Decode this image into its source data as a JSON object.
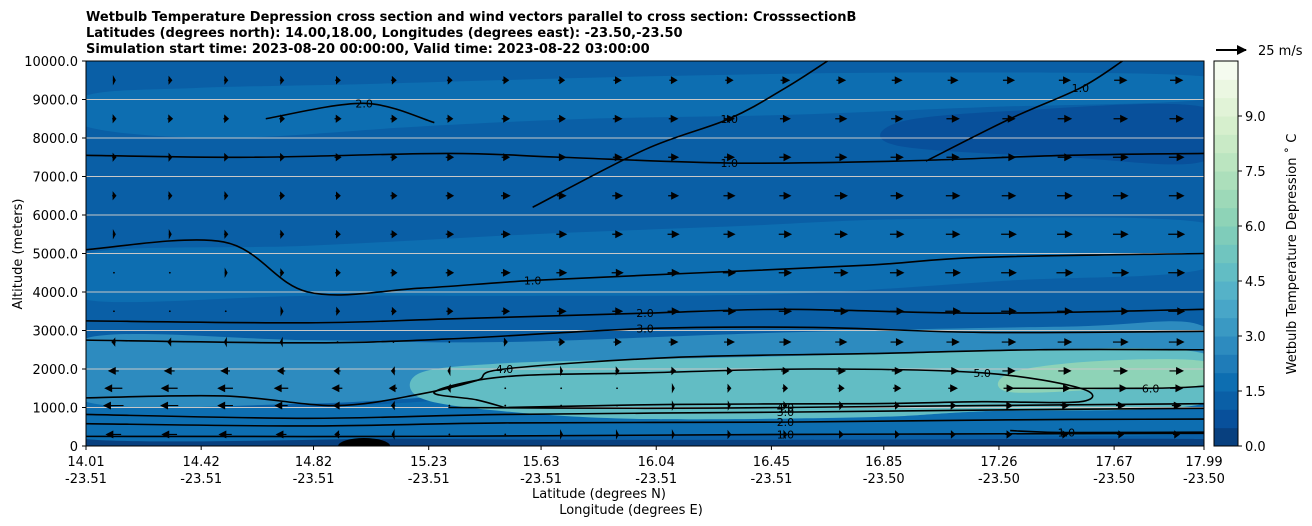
{
  "chart_data": {
    "type": "heatmap",
    "subtype": "filled-contour cross section with wind vectors",
    "title_lines": [
      "Wetbulb Temperature Depression cross section and wind vectors parallel to cross section: CrosssectionB",
      "Latitudes (degrees north): 14.00,18.00, Longitudes (degrees east): -23.50,-23.50",
      "Simulation start time: 2023-08-20 00:00:00, Valid time: 2023-08-22 03:00:00"
    ],
    "xlabel_line1": "Latitude (degrees N)",
    "xlabel_line2": "Longitude (degrees E)",
    "ylabel": "Altitude (meters)",
    "xlim": [
      14.01,
      17.99
    ],
    "ylim": [
      0,
      10000
    ],
    "x_ticks": [
      {
        "lat": "14.01",
        "lon": "-23.51",
        "value": 14.01
      },
      {
        "lat": "14.42",
        "lon": "-23.51",
        "value": 14.42
      },
      {
        "lat": "14.82",
        "lon": "-23.51",
        "value": 14.82
      },
      {
        "lat": "15.23",
        "lon": "-23.51",
        "value": 15.23
      },
      {
        "lat": "15.63",
        "lon": "-23.51",
        "value": 15.63
      },
      {
        "lat": "16.04",
        "lon": "-23.51",
        "value": 16.04
      },
      {
        "lat": "16.45",
        "lon": "-23.51",
        "value": 16.45
      },
      {
        "lat": "16.85",
        "lon": "-23.50",
        "value": 16.85
      },
      {
        "lat": "17.26",
        "lon": "-23.50",
        "value": 17.26
      },
      {
        "lat": "17.67",
        "lon": "-23.50",
        "value": 17.67
      },
      {
        "lat": "17.99",
        "lon": "-23.50",
        "value": 17.99
      }
    ],
    "y_ticks": [
      {
        "label": "0",
        "value": 0
      },
      {
        "label": "1000.0",
        "value": 1000
      },
      {
        "label": "2000.0",
        "value": 2000
      },
      {
        "label": "3000.0",
        "value": 3000
      },
      {
        "label": "4000.0",
        "value": 4000
      },
      {
        "label": "5000.0",
        "value": 5000
      },
      {
        "label": "6000.0",
        "value": 6000
      },
      {
        "label": "7000.0",
        "value": 7000
      },
      {
        "label": "8000.0",
        "value": 8000
      },
      {
        "label": "9000.0",
        "value": 9000
      },
      {
        "label": "10000.0",
        "value": 10000
      }
    ],
    "grid": "horizontal",
    "colorbar": {
      "label": "Wetbulb Temperature Depression ˚ C",
      "min": 0,
      "max": 10.5,
      "step": 0.5,
      "ticks": [
        {
          "label": "0.0",
          "value": 0
        },
        {
          "label": "1.5",
          "value": 1.5
        },
        {
          "label": "3.0",
          "value": 3
        },
        {
          "label": "4.5",
          "value": 4.5
        },
        {
          "label": "6.0",
          "value": 6
        },
        {
          "label": "7.5",
          "value": 7.5
        },
        {
          "label": "9.0",
          "value": 9
        }
      ],
      "colors": [
        "#08407f",
        "#08509b",
        "#0a5fa6",
        "#0d6eb1",
        "#1f7cb8",
        "#2d8bbf",
        "#3a99c3",
        "#48a6c8",
        "#55b2c8",
        "#62bdc4",
        "#70c5bf",
        "#7fccba",
        "#8ed3b7",
        "#9dd9b8",
        "#acdfbb",
        "#bbe5c0",
        "#c9eac6",
        "#d6efcd",
        "#e1f3d7",
        "#ebf7e2",
        "#f5fbef"
      ]
    },
    "wind_reference": {
      "label": "25 m/s",
      "speed": 25
    },
    "filled_bands": [
      {
        "name": "surface-low",
        "value": 0.4,
        "points": [
          [
            14.01,
            0
          ],
          [
            17.99,
            0
          ],
          [
            17.99,
            180
          ],
          [
            16.5,
            160
          ],
          [
            15.5,
            170
          ],
          [
            14.5,
            230
          ],
          [
            14.01,
            220
          ]
        ]
      },
      {
        "name": "boundary-layer",
        "value": 1.7,
        "points": [
          [
            14.01,
            180
          ],
          [
            15.4,
            230
          ],
          [
            16.5,
            320
          ],
          [
            17.99,
            330
          ],
          [
            17.99,
            1200
          ],
          [
            17.5,
            1300
          ],
          [
            16.5,
            1350
          ],
          [
            15.5,
            1250
          ],
          [
            14.8,
            1000
          ],
          [
            14.3,
            1100
          ],
          [
            14.01,
            1150
          ]
        ]
      },
      {
        "name": "moist-mid",
        "value": 2.9,
        "points": [
          [
            14.01,
            1150
          ],
          [
            14.8,
            1100
          ],
          [
            15.5,
            1350
          ],
          [
            16.5,
            1400
          ],
          [
            17.99,
            1300
          ],
          [
            17.99,
            3100
          ],
          [
            17.5,
            3100
          ],
          [
            16.5,
            2950
          ],
          [
            15.5,
            2700
          ],
          [
            14.8,
            2750
          ],
          [
            14.01,
            2800
          ]
        ]
      },
      {
        "name": "dry-layer",
        "value": 4.6,
        "points": [
          [
            15.2,
            1250
          ],
          [
            15.5,
            900
          ],
          [
            16.0,
            700
          ],
          [
            16.8,
            750
          ],
          [
            17.2,
            900
          ],
          [
            17.99,
            1100
          ],
          [
            17.99,
            2400
          ],
          [
            17.3,
            2500
          ],
          [
            16.6,
            2350
          ],
          [
            16.0,
            2250
          ],
          [
            15.5,
            2150
          ],
          [
            15.2,
            1900
          ]
        ]
      },
      {
        "name": "dry-core",
        "value": 6.2,
        "points": [
          [
            17.3,
            1400
          ],
          [
            17.7,
            1500
          ],
          [
            17.99,
            1600
          ],
          [
            17.99,
            2200
          ],
          [
            17.6,
            2200
          ],
          [
            17.3,
            1900
          ]
        ]
      },
      {
        "name": "mid-trop",
        "value": 1.5,
        "points": [
          [
            14.01,
            3800
          ],
          [
            14.8,
            3900
          ],
          [
            15.6,
            3900
          ],
          [
            16.5,
            3950
          ],
          [
            17.3,
            4300
          ],
          [
            17.99,
            4600
          ],
          [
            17.99,
            5800
          ],
          [
            17.0,
            5900
          ],
          [
            16.3,
            5700
          ],
          [
            15.6,
            5500
          ],
          [
            14.8,
            5200
          ],
          [
            14.01,
            5000
          ]
        ]
      },
      {
        "name": "upper-band",
        "value": 1.6,
        "points": [
          [
            14.01,
            8300
          ],
          [
            14.5,
            8000
          ],
          [
            15.2,
            8300
          ],
          [
            15.8,
            8500
          ],
          [
            16.5,
            8600
          ],
          [
            17.2,
            8800
          ],
          [
            17.99,
            9000
          ],
          [
            17.99,
            9600
          ],
          [
            17.0,
            9700
          ],
          [
            16.0,
            9600
          ],
          [
            15.0,
            9400
          ],
          [
            14.4,
            9300
          ],
          [
            14.01,
            9100
          ]
        ]
      },
      {
        "name": "dark-upper",
        "value": 0.6,
        "points": [
          [
            16.9,
            7800
          ],
          [
            17.5,
            7500
          ],
          [
            17.99,
            7400
          ],
          [
            17.99,
            8800
          ],
          [
            17.3,
            8700
          ],
          [
            16.9,
            8400
          ]
        ]
      }
    ],
    "contours": [
      {
        "level": "1.0",
        "points": [
          [
            14.01,
            250
          ],
          [
            15.2,
            250
          ],
          [
            16.5,
            300
          ],
          [
            17.99,
            330
          ]
        ]
      },
      {
        "level": "1.0",
        "points": [
          [
            14.01,
            7550
          ],
          [
            14.6,
            7500
          ],
          [
            15.3,
            7600
          ],
          [
            15.7,
            7500
          ],
          [
            16.3,
            7350
          ],
          [
            16.9,
            7400
          ],
          [
            17.5,
            7550
          ],
          [
            17.99,
            7600
          ]
        ]
      },
      {
        "level": "1.0",
        "points": [
          [
            14.01,
            5100
          ],
          [
            14.5,
            5300
          ],
          [
            14.8,
            4000
          ],
          [
            15.2,
            4100
          ],
          [
            15.6,
            4300
          ],
          [
            16.2,
            4500
          ],
          [
            16.8,
            4700
          ],
          [
            17.2,
            4900
          ],
          [
            17.99,
            5000
          ]
        ]
      },
      {
        "level": "1.0",
        "points": [
          [
            15.6,
            6200
          ],
          [
            16.0,
            7700
          ],
          [
            16.3,
            8500
          ],
          [
            16.5,
            9300
          ],
          [
            16.65,
            10000
          ]
        ]
      },
      {
        "level": "1.0",
        "points": [
          [
            17.0,
            7400
          ],
          [
            17.3,
            8500
          ],
          [
            17.55,
            9300
          ],
          [
            17.7,
            10000
          ]
        ]
      },
      {
        "level": "1.0",
        "points": [
          [
            17.3,
            400
          ],
          [
            17.5,
            350
          ],
          [
            17.99,
            360
          ]
        ]
      },
      {
        "level": "2.0",
        "points": [
          [
            14.01,
            580
          ],
          [
            14.8,
            520
          ],
          [
            15.5,
            600
          ],
          [
            16.5,
            620
          ],
          [
            17.3,
            680
          ],
          [
            17.99,
            700
          ]
        ]
      },
      {
        "level": "2.0",
        "points": [
          [
            14.01,
            3250
          ],
          [
            14.8,
            3200
          ],
          [
            15.3,
            3300
          ],
          [
            16.0,
            3450
          ],
          [
            16.5,
            3550
          ],
          [
            17.2,
            3450
          ],
          [
            17.99,
            3550
          ]
        ]
      },
      {
        "level": "3.0",
        "points": [
          [
            14.01,
            820
          ],
          [
            14.8,
            720
          ],
          [
            15.5,
            820
          ],
          [
            16.5,
            880
          ],
          [
            17.3,
            940
          ],
          [
            17.99,
            980
          ]
        ]
      },
      {
        "level": "3.0",
        "points": [
          [
            14.01,
            2750
          ],
          [
            14.8,
            2680
          ],
          [
            15.3,
            2780
          ],
          [
            16.0,
            3050
          ],
          [
            16.6,
            3080
          ],
          [
            17.2,
            2950
          ],
          [
            17.99,
            2980
          ]
        ]
      },
      {
        "level": "4.0",
        "points": [
          [
            14.01,
            1250
          ],
          [
            14.5,
            1300
          ],
          [
            14.9,
            1050
          ],
          [
            15.2,
            1350
          ],
          [
            15.4,
            1700
          ],
          [
            15.5,
            2000
          ],
          [
            16.1,
            2300
          ],
          [
            16.8,
            2400
          ],
          [
            17.4,
            2500
          ],
          [
            17.99,
            2500
          ]
        ]
      },
      {
        "level": "4.0",
        "points": [
          [
            15.3,
            1000
          ],
          [
            16.0,
            980
          ],
          [
            16.5,
            1000
          ],
          [
            17.2,
            1050
          ],
          [
            17.99,
            1100
          ]
        ]
      },
      {
        "level": "5.0",
        "points": [
          [
            15.5,
            1000
          ],
          [
            16.1,
            1080
          ],
          [
            16.8,
            1100
          ],
          [
            17.2,
            1150
          ],
          [
            17.55,
            1150
          ],
          [
            17.55,
            1500
          ],
          [
            17.2,
            1900
          ],
          [
            16.6,
            2000
          ],
          [
            16.0,
            1900
          ],
          [
            15.5,
            1800
          ],
          [
            15.25,
            1400
          ],
          [
            15.4,
            1200
          ],
          [
            15.5,
            1000
          ]
        ]
      },
      {
        "level": "6.0",
        "points": [
          [
            17.3,
            1500
          ],
          [
            17.8,
            1500
          ],
          [
            17.99,
            1550
          ]
        ]
      },
      {
        "level": "2.0",
        "points": [
          [
            14.65,
            8500
          ],
          [
            15.0,
            8900
          ],
          [
            15.25,
            8400
          ]
        ]
      }
    ],
    "wind_vector_rows": [
      {
        "altitude": 300,
        "u": [
          -12,
          -12,
          -10,
          -8,
          -4,
          -2,
          0,
          1,
          2,
          2,
          2,
          3,
          3,
          4,
          4,
          4,
          5,
          5,
          5,
          5
        ]
      },
      {
        "altitude": 1050,
        "u": [
          -16,
          -14,
          -12,
          -10,
          -6,
          -3,
          -1,
          0,
          1,
          1,
          2,
          2,
          3,
          3,
          4,
          5,
          6,
          6,
          7,
          7
        ]
      },
      {
        "altitude": 1500,
        "u": [
          -14,
          -13,
          -12,
          -11,
          -8,
          -6,
          -3,
          -1,
          0,
          1,
          2,
          3,
          4,
          5,
          6,
          7,
          8,
          9,
          10,
          10
        ]
      },
      {
        "altitude": 1950,
        "u": [
          -8,
          -8,
          -7,
          -6,
          -5,
          -3,
          -2,
          0,
          2,
          3,
          4,
          5,
          6,
          7,
          8,
          9,
          10,
          10,
          11,
          11
        ]
      },
      {
        "altitude": 2700,
        "u": [
          -3,
          -3,
          -2,
          -2,
          -1,
          0,
          1,
          3,
          5,
          6,
          7,
          8,
          9,
          9,
          10,
          10,
          11,
          11,
          12,
          12
        ]
      },
      {
        "altitude": 3500,
        "u": [
          0,
          0,
          1,
          2,
          3,
          4,
          5,
          6,
          7,
          8,
          9,
          10,
          10,
          11,
          11,
          12,
          12,
          12,
          13,
          13
        ]
      },
      {
        "altitude": 4500,
        "u": [
          1,
          1,
          2,
          3,
          4,
          5,
          6,
          7,
          8,
          9,
          9,
          10,
          10,
          11,
          11,
          12,
          12,
          13,
          13,
          13
        ]
      },
      {
        "altitude": 5500,
        "u": [
          2,
          2,
          3,
          3,
          4,
          5,
          6,
          7,
          8,
          8,
          9,
          9,
          10,
          10,
          11,
          11,
          12,
          12,
          12,
          13
        ]
      },
      {
        "altitude": 6500,
        "u": [
          3,
          3,
          3,
          4,
          4,
          5,
          6,
          7,
          7,
          8,
          8,
          9,
          9,
          10,
          10,
          11,
          11,
          12,
          12,
          12
        ]
      },
      {
        "altitude": 7500,
        "u": [
          3,
          3,
          4,
          4,
          5,
          5,
          6,
          6,
          7,
          7,
          8,
          8,
          9,
          9,
          10,
          10,
          11,
          11,
          12,
          12
        ]
      },
      {
        "altitude": 8500,
        "u": [
          3,
          4,
          4,
          4,
          5,
          5,
          5,
          6,
          6,
          7,
          7,
          8,
          8,
          9,
          9,
          10,
          10,
          11,
          11,
          11
        ]
      },
      {
        "altitude": 9500,
        "u": [
          2,
          3,
          3,
          3,
          4,
          4,
          4,
          5,
          5,
          6,
          6,
          6,
          7,
          7,
          8,
          8,
          9,
          9,
          10,
          10
        ]
      }
    ]
  }
}
